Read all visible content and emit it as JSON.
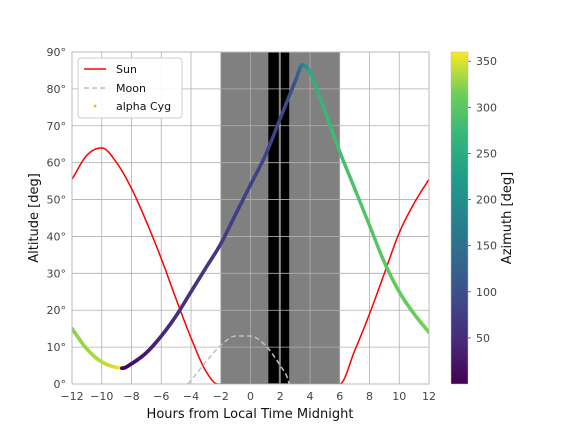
{
  "chart_data": {
    "type": "scatter",
    "xlabel": "Hours from Local Time Midnight",
    "ylabel": "Altitude [deg]",
    "colorbar_label": "Azimuth [deg]",
    "xlim": [
      -12,
      12
    ],
    "ylim": [
      0,
      90
    ],
    "x_ticks": [
      "−12",
      "−10",
      "−8",
      "−6",
      "−4",
      "−2",
      "0",
      "2",
      "4",
      "6",
      "8",
      "10",
      "12"
    ],
    "y_ticks": [
      "0°",
      "10°",
      "20°",
      "30°",
      "40°",
      "50°",
      "60°",
      "70°",
      "80°",
      "90°"
    ],
    "colorbar_ticks": [
      "50",
      "100",
      "150",
      "200",
      "250",
      "300",
      "350"
    ],
    "colorbar_range": [
      0,
      360
    ],
    "colormap": "viridis",
    "grid": true,
    "legend_position": "upper-left",
    "legend": [
      {
        "label": "Sun",
        "style": "solid",
        "color": "#ff0000"
      },
      {
        "label": "Moon",
        "style": "dashed",
        "color": "#c0c0c0"
      },
      {
        "label": "alpha Cyg",
        "style": "dot",
        "color": "#c8d62a"
      }
    ],
    "twilight_bands": [
      {
        "x0": -2.0,
        "x1": 6.0,
        "color": "#808080"
      },
      {
        "x0": 1.2,
        "x1": 1.9,
        "color": "#000000"
      },
      {
        "x0": 2.0,
        "x1": 2.6,
        "color": "#000000"
      }
    ],
    "series": [
      {
        "name": "Sun",
        "color": "#ff0000",
        "style": "solid",
        "x": [
          -12,
          -11,
          -10,
          -9,
          -8,
          -7,
          -6,
          -5,
          -4,
          -3,
          -2.2,
          -2,
          5.9,
          6,
          7,
          8,
          9,
          10,
          11,
          12
        ],
        "y": [
          55.5,
          62,
          64,
          60,
          53,
          44,
          34,
          23,
          12.5,
          3.5,
          0,
          0,
          0,
          0,
          9,
          19,
          30,
          41,
          49,
          55.5
        ]
      },
      {
        "name": "Moon",
        "color": "#c0c0c0",
        "style": "dashed",
        "x": [
          -4.2,
          -3.5,
          -3,
          -2,
          -1,
          0,
          1,
          1.5,
          2,
          2.5,
          2.6
        ],
        "y": [
          0,
          3.5,
          6,
          10.5,
          13,
          13,
          10.5,
          8,
          5,
          1.5,
          0
        ]
      },
      {
        "name": "alpha Cyg",
        "x": [
          -12,
          -11,
          -10,
          -9,
          -8.6,
          -8,
          -7,
          -6,
          -5,
          -4,
          -3,
          -2,
          -1,
          0,
          1,
          2,
          3,
          3.5,
          4,
          5,
          6,
          7,
          8,
          9,
          10,
          11,
          12
        ],
        "y": [
          15,
          9.5,
          6,
          4.5,
          4.3,
          5.5,
          8.5,
          13,
          18.5,
          25,
          31.5,
          38,
          46,
          54,
          62,
          72,
          82,
          86.5,
          84.5,
          74,
          63,
          53,
          43,
          33,
          25,
          19,
          14
        ],
        "azimuth": [
          323,
          330,
          338,
          350,
          2,
          15,
          30,
          45,
          55,
          62,
          68,
          72,
          76,
          79,
          82,
          86,
          100,
          170,
          250,
          272,
          282,
          290,
          296,
          301,
          306,
          312,
          319
        ]
      }
    ]
  }
}
